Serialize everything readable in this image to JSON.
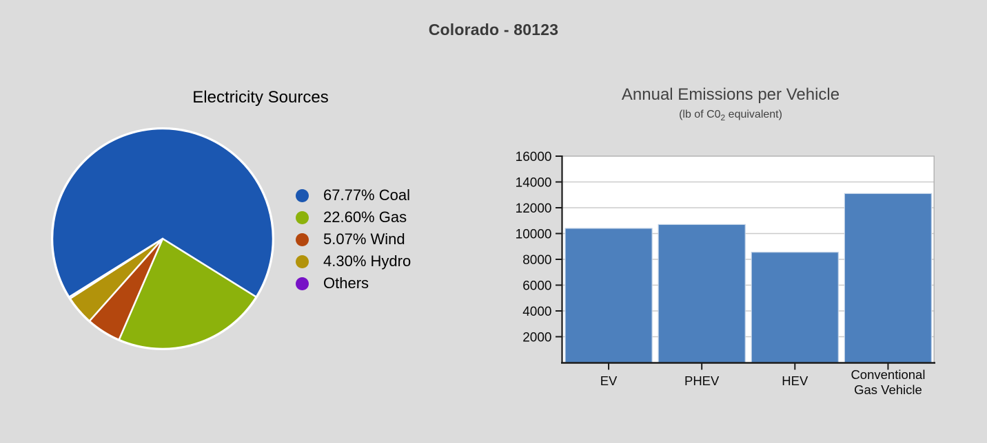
{
  "page": {
    "title": "Colorado - 80123",
    "background_color": "#dcdcdc"
  },
  "chart_data": [
    {
      "type": "pie",
      "title": "Electricity Sources",
      "labels": [
        "Coal",
        "Gas",
        "Wind",
        "Hydro",
        "Others"
      ],
      "legend_labels": [
        "67.77% Coal",
        "22.60% Gas",
        "5.07% Wind",
        "4.30% Hydro",
        "Others"
      ],
      "values": [
        67.77,
        22.6,
        5.07,
        4.3,
        0.26
      ],
      "colors": [
        "#1b57b1",
        "#8cb20c",
        "#b4470e",
        "#b2930b",
        "#7712c6"
      ],
      "legend_position": "right",
      "start_angle_deg": 212,
      "direction": "clockwise",
      "slice_border_color": "#ffffff"
    },
    {
      "type": "bar",
      "title": "Annual Emissions per Vehicle",
      "subtitle": {
        "pre": "(lb of C0",
        "sub": "2",
        "post": " equivalent)"
      },
      "categories": [
        [
          "EV"
        ],
        [
          "PHEV"
        ],
        [
          "HEV"
        ],
        [
          "Conventional",
          "Gas Vehicle"
        ]
      ],
      "values": [
        10400,
        10700,
        8550,
        13100
      ],
      "bar_color": "#4d80bd",
      "bar_edge_color": "#bdcfe5",
      "ylim": [
        0,
        16000
      ],
      "yticks": [
        2000,
        4000,
        6000,
        8000,
        10000,
        12000,
        14000,
        16000
      ],
      "grid": true,
      "grid_color": "#cbcbcb",
      "plot_background": "#ffffff",
      "axis_color": "#1a1a1a",
      "border_color": "#b3b3b3"
    }
  ]
}
